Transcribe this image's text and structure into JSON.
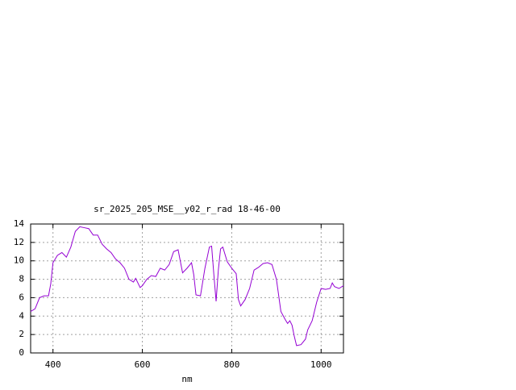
{
  "chart_data": {
    "type": "line",
    "title": "sr_2025_205_MSE__y02_r_rad 18-46-00",
    "x_label": "nm",
    "xlim": [
      350,
      1050
    ],
    "xticks": [
      400,
      600,
      800,
      1000
    ],
    "ylim": [
      0,
      14
    ],
    "yticks": [
      0,
      2,
      4,
      6,
      8,
      10,
      12,
      14
    ],
    "grid": true,
    "x": [
      350,
      360,
      370,
      380,
      390,
      395,
      400,
      410,
      420,
      430,
      440,
      450,
      460,
      470,
      480,
      490,
      500,
      510,
      520,
      530,
      540,
      550,
      560,
      570,
      580,
      585,
      595,
      600,
      610,
      620,
      630,
      640,
      650,
      660,
      670,
      680,
      690,
      700,
      710,
      715,
      720,
      730,
      740,
      750,
      755,
      760,
      765,
      770,
      775,
      780,
      790,
      800,
      810,
      815,
      820,
      830,
      840,
      850,
      860,
      870,
      880,
      890,
      900,
      910,
      920,
      925,
      930,
      935,
      940,
      945,
      955,
      965,
      970,
      980,
      990,
      1000,
      1010,
      1020,
      1025,
      1030,
      1040,
      1050
    ],
    "series": [
      {
        "color": "#9400d3",
        "values": [
          4.5,
          4.8,
          6.0,
          6.2,
          6.2,
          7.5,
          9.8,
          10.6,
          10.9,
          10.4,
          11.5,
          13.2,
          13.7,
          13.6,
          13.5,
          12.8,
          12.8,
          11.8,
          11.3,
          10.9,
          10.2,
          9.8,
          9.2,
          8.0,
          7.7,
          8.1,
          7.1,
          7.3,
          8.0,
          8.4,
          8.3,
          9.2,
          9.0,
          9.6,
          11.0,
          11.2,
          8.7,
          9.2,
          9.8,
          8.5,
          6.3,
          6.2,
          9.2,
          11.5,
          11.6,
          8.5,
          5.6,
          9.0,
          11.3,
          11.5,
          9.9,
          9.2,
          8.6,
          5.8,
          5.1,
          5.8,
          7.0,
          9.0,
          9.3,
          9.7,
          9.8,
          9.6,
          8.0,
          4.5,
          3.6,
          3.2,
          3.5,
          3.0,
          1.8,
          0.8,
          0.9,
          1.5,
          2.5,
          3.5,
          5.5,
          7.0,
          6.9,
          7.0,
          7.6,
          7.2,
          7.0,
          7.3
        ]
      }
    ]
  }
}
